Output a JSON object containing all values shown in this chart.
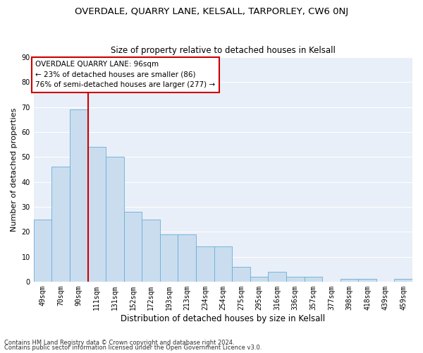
{
  "title1": "OVERDALE, QUARRY LANE, KELSALL, TARPORLEY, CW6 0NJ",
  "title2": "Size of property relative to detached houses in Kelsall",
  "xlabel": "Distribution of detached houses by size in Kelsall",
  "ylabel": "Number of detached properties",
  "categories": [
    "49sqm",
    "70sqm",
    "90sqm",
    "111sqm",
    "131sqm",
    "152sqm",
    "172sqm",
    "193sqm",
    "213sqm",
    "234sqm",
    "254sqm",
    "275sqm",
    "295sqm",
    "316sqm",
    "336sqm",
    "357sqm",
    "377sqm",
    "398sqm",
    "418sqm",
    "439sqm",
    "459sqm"
  ],
  "values": [
    25,
    46,
    69,
    54,
    50,
    28,
    25,
    19,
    19,
    14,
    14,
    6,
    2,
    4,
    2,
    2,
    0,
    1,
    1,
    0,
    1
  ],
  "bar_color": "#c9ddef",
  "bar_edge_color": "#6aaed6",
  "vline_color": "#cc0000",
  "vline_index": 2.5,
  "annotation_title": "OVERDALE QUARRY LANE: 96sqm",
  "annotation_line1": "← 23% of detached houses are smaller (86)",
  "annotation_line2": "76% of semi-detached houses are larger (277) →",
  "annotation_box_color": "#ffffff",
  "annotation_box_edge": "#cc0000",
  "ylim": [
    0,
    90
  ],
  "yticks": [
    0,
    10,
    20,
    30,
    40,
    50,
    60,
    70,
    80,
    90
  ],
  "footer1": "Contains HM Land Registry data © Crown copyright and database right 2024.",
  "footer2": "Contains public sector information licensed under the Open Government Licence v3.0.",
  "bg_color": "#e8eff8",
  "grid_color": "#ffffff",
  "outer_bg": "#ffffff",
  "title1_fontsize": 9.5,
  "title2_fontsize": 8.5,
  "xlabel_fontsize": 8.5,
  "ylabel_fontsize": 8,
  "tick_fontsize": 7,
  "footer_fontsize": 6,
  "annotation_fontsize": 7.5
}
